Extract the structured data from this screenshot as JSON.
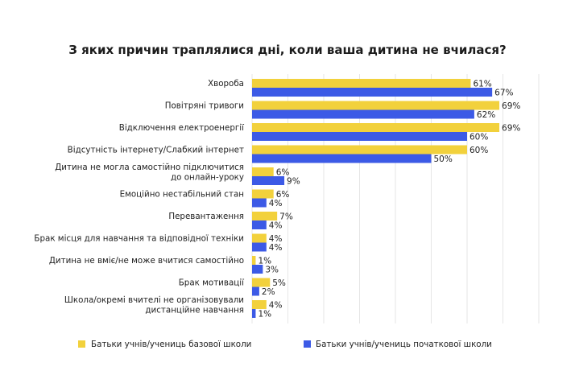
{
  "chart_data": {
    "type": "bar",
    "orientation": "horizontal",
    "title": "З яких причин траплялися дні, коли ваша дитина не вчилася?",
    "categories": [
      [
        "Хвороба"
      ],
      [
        "Повітряні тривоги"
      ],
      [
        "Відключення електроенергії"
      ],
      [
        "Відсутність інтернету/Слабкий інтернет"
      ],
      [
        "Дитина не могла самостійно підключитися",
        "до онлайн-уроку"
      ],
      [
        "Емоційно нестабільний стан"
      ],
      [
        "Перевантаження"
      ],
      [
        "Брак місця для навчання та відповідної техніки"
      ],
      [
        "Дитина не вміє/не може вчитися самостійно"
      ],
      [
        "Брак мотивації"
      ],
      [
        "Школа/окремі вчителі не організовували",
        "дистанційне навчання"
      ]
    ],
    "series": [
      {
        "name": "Батьки учнів/учениць базової школи",
        "color": "#f2d13c",
        "values": [
          61,
          69,
          69,
          60,
          6,
          6,
          7,
          4,
          1,
          5,
          4
        ],
        "labels": [
          "61%",
          "69%",
          "69%",
          "60%",
          "6%",
          "6%",
          "7%",
          "4%",
          "1%",
          "5%",
          "4%"
        ]
      },
      {
        "name": "Батьки учнів/учениць початкової школи",
        "color": "#3c5ae6",
        "values": [
          67,
          62,
          60,
          50,
          9,
          4,
          4,
          4,
          3,
          2,
          1
        ],
        "labels": [
          "67%",
          "62%",
          "60%",
          "50%",
          "9%",
          "4%",
          "4%",
          "4%",
          "3%",
          "2%",
          "1%"
        ]
      }
    ],
    "xlim": [
      0,
      80
    ],
    "grid": true,
    "legend_position": "bottom"
  }
}
